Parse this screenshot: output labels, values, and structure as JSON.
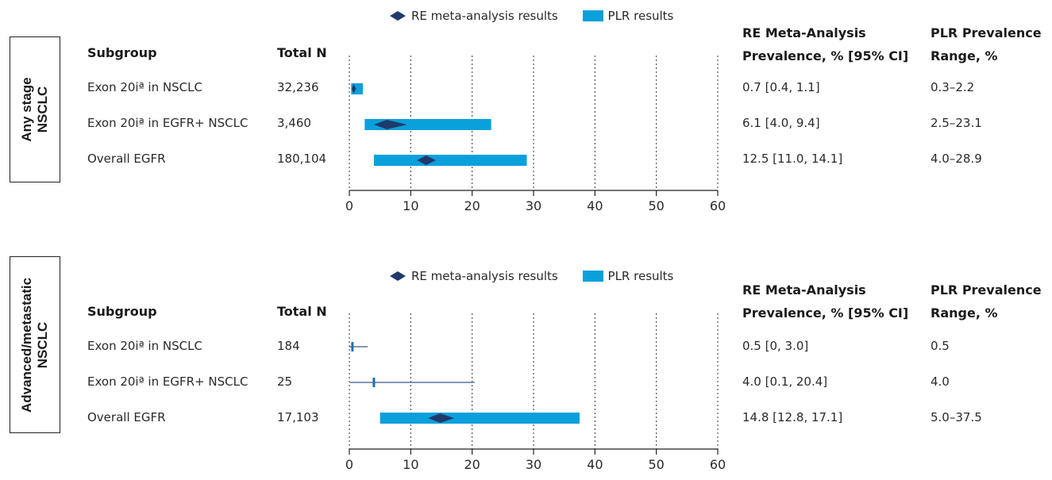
{
  "legend": {
    "re_label": "RE meta-analysis results",
    "plr_label": "PLR results"
  },
  "headers": {
    "subgroup": "Subgroup",
    "total_n": "Total N",
    "re_line1": "RE Meta-Analysis",
    "re_line2": "Prevalence, % [95% CI]",
    "plr_line1": "PLR Prevalence",
    "plr_line2": "Range, %"
  },
  "colors": {
    "plr_bar": "#0aa0dc",
    "re_diamond": "#1f3a6b",
    "axis": "#222222"
  },
  "chart_data": [
    {
      "type": "forest",
      "panel_label_line1": "Any stage",
      "panel_label_line2": "NSCLC",
      "xlim": [
        0,
        60
      ],
      "xticks": [
        0,
        10,
        20,
        30,
        40,
        50,
        60
      ],
      "gridlines": "dotted-vertical",
      "rows": [
        {
          "subgroup": "Exon 20iª in NSCLC",
          "total_n": "32,236",
          "re_point": 0.7,
          "re_ci": [
            0.4,
            1.1
          ],
          "plr_range": [
            0.3,
            2.2
          ],
          "re_text": "0.7 [0.4, 1.1]",
          "plr_text": "0.3–2.2"
        },
        {
          "subgroup": "Exon 20iª in EGFR+ NSCLC",
          "total_n": "3,460",
          "re_point": 6.1,
          "re_ci": [
            4.0,
            9.4
          ],
          "plr_range": [
            2.5,
            23.1
          ],
          "re_text": "6.1 [4.0, 9.4]",
          "plr_text": "2.5–23.1"
        },
        {
          "subgroup": "Overall EGFR",
          "total_n": "180,104",
          "re_point": 12.5,
          "re_ci": [
            11.0,
            14.1
          ],
          "plr_range": [
            4.0,
            28.9
          ],
          "re_text": "12.5 [11.0, 14.1]",
          "plr_text": "4.0–28.9"
        }
      ]
    },
    {
      "type": "forest",
      "panel_label_line1": "Advanced/metastatic",
      "panel_label_line2": "NSCLC",
      "xlim": [
        0,
        60
      ],
      "xticks": [
        0,
        10,
        20,
        30,
        40,
        50,
        60
      ],
      "gridlines": "dotted-vertical",
      "rows": [
        {
          "subgroup": "Exon 20iª in NSCLC",
          "total_n": "184",
          "re_point": 0.5,
          "re_ci": [
            0,
            3.0
          ],
          "plr_range": [
            0.5,
            0.5
          ],
          "re_text": "0.5 [0, 3.0]",
          "plr_text": "0.5"
        },
        {
          "subgroup": "Exon 20iª in EGFR+ NSCLC",
          "total_n": "25",
          "re_point": 4.0,
          "re_ci": [
            0.1,
            20.4
          ],
          "plr_range": [
            4.0,
            4.0
          ],
          "re_text": "4.0 [0.1, 20.4]",
          "plr_text": "4.0"
        },
        {
          "subgroup": "Overall EGFR",
          "total_n": "17,103",
          "re_point": 14.8,
          "re_ci": [
            12.8,
            17.1
          ],
          "plr_range": [
            5.0,
            37.5
          ],
          "re_text": "14.8 [12.8, 17.1]",
          "plr_text": "5.0–37.5"
        }
      ]
    }
  ]
}
